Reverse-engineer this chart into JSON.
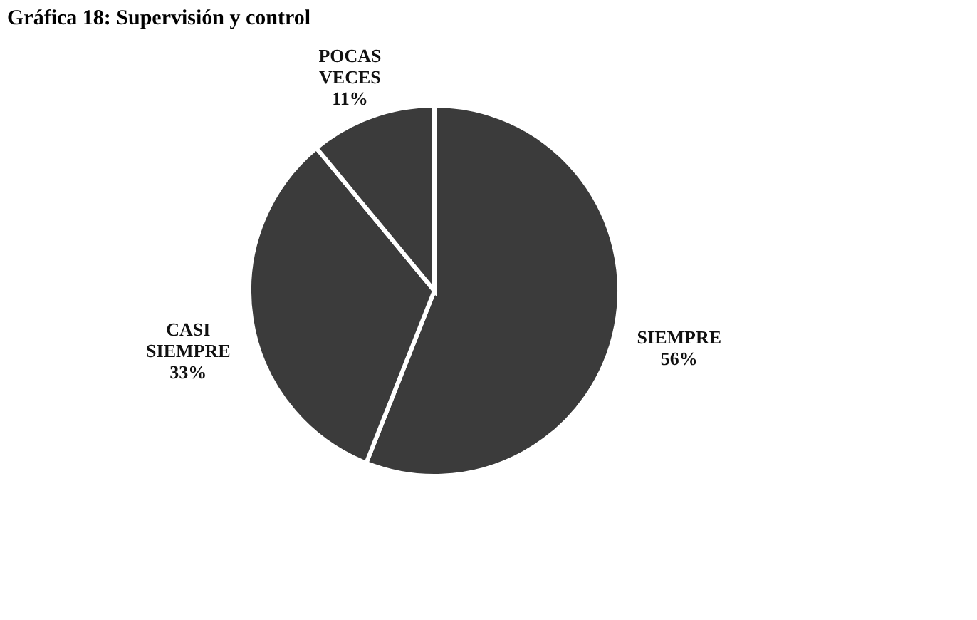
{
  "chart_data": {
    "type": "pie",
    "title": "Gráfica 18: Supervisión y control",
    "categories": [
      "SIEMPRE",
      "CASI SIEMPRE",
      "POCAS VECES"
    ],
    "values": [
      56,
      33,
      11
    ],
    "colors": [
      "#3b3b3b",
      "#3b3b3b",
      "#3b3b3b"
    ],
    "value_labels": [
      "56%",
      "33%",
      "11%"
    ],
    "data_labels": true,
    "legend": false
  }
}
